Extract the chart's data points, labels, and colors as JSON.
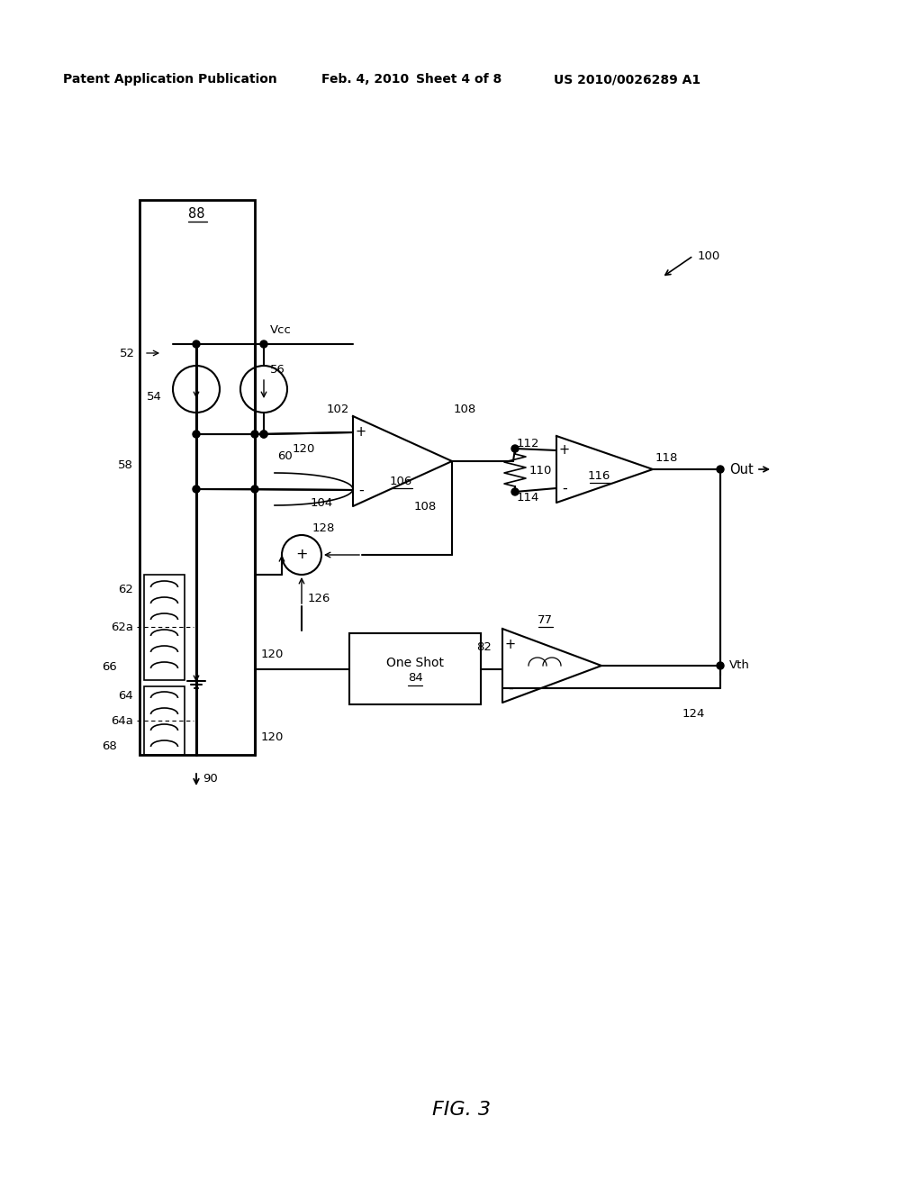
{
  "bg_color": "#ffffff",
  "header_text": "Patent Application Publication",
  "header_date": "Feb. 4, 2010",
  "header_sheet": "Sheet 4 of 8",
  "header_patent": "US 2010/0026289 A1",
  "fig_label": "FIG. 3",
  "label_fontsize": 9.5
}
